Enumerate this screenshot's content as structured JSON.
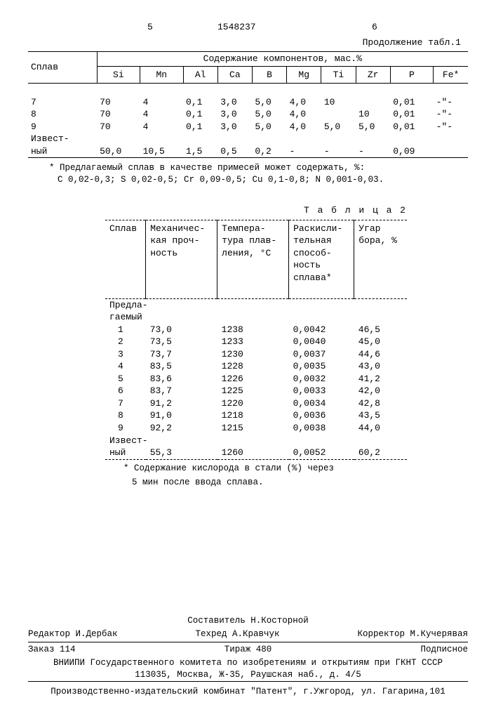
{
  "header": {
    "page_left": "5",
    "doc_number": "1548237",
    "page_right": "6",
    "continuation": "Продолжение табл.1"
  },
  "table1": {
    "row_label": "Сплав",
    "group_label": "Содержание компонентов, мас.%",
    "columns": [
      "Si",
      "Mn",
      "Al",
      "Ca",
      "B",
      "Mg",
      "Ti",
      "Zr",
      "P",
      "Fe*"
    ],
    "rows": [
      {
        "label": "7",
        "cells": [
          "70",
          "4",
          "0,1",
          "3,0",
          "5,0",
          "4,0",
          "10",
          "",
          "0,01",
          "-\"-"
        ]
      },
      {
        "label": "8",
        "cells": [
          "70",
          "4",
          "0,1",
          "3,0",
          "5,0",
          "4,0",
          "",
          "10",
          "0,01",
          "-\"-"
        ]
      },
      {
        "label": "9",
        "cells": [
          "70",
          "4",
          "0,1",
          "3,0",
          "5,0",
          "4,0",
          "5,0",
          "5,0",
          "0,01",
          "-\"-"
        ]
      },
      {
        "label": "Извест-",
        "cells": [
          "",
          "",
          "",
          "",
          "",
          "",
          "",
          "",
          "",
          ""
        ]
      },
      {
        "label": "ный",
        "cells": [
          "50,0",
          "10,5",
          "1,5",
          "0,5",
          "0,2",
          "-",
          "-",
          "-",
          "0,09",
          ""
        ]
      }
    ],
    "footnote_star": "* Предлагаемый сплав в качестве примесей может содержать, %:",
    "footnote_line2": "C 0,02-0,3; S 0,02-0,5; Cr 0,09-0,5; Cu 0,1-0,8; N 0,001-0,03."
  },
  "table2": {
    "caption": "Т а б л и ц а 2",
    "columns": [
      "Сплав",
      "Механичес-\nкая проч-\nность",
      "Темпера-\nтура плав-\nления, °С",
      "Раскисли-\nтельная\nспособ-\nность\nсплава*",
      "Угар\nбора, %"
    ],
    "section1_label_a": "Предла-",
    "section1_label_b": "гаемый",
    "rows": [
      [
        "1",
        "73,0",
        "1238",
        "0,0042",
        "46,5"
      ],
      [
        "2",
        "73,5",
        "1233",
        "0,0040",
        "45,0"
      ],
      [
        "3",
        "73,7",
        "1230",
        "0,0037",
        "44,6"
      ],
      [
        "4",
        "83,5",
        "1228",
        "0,0035",
        "43,0"
      ],
      [
        "5",
        "83,6",
        "1226",
        "0,0032",
        "41,2"
      ],
      [
        "6",
        "83,7",
        "1225",
        "0,0033",
        "42,0"
      ],
      [
        "7",
        "91,2",
        "1220",
        "0,0034",
        "42,8"
      ],
      [
        "8",
        "91,0",
        "1218",
        "0,0036",
        "43,5"
      ],
      [
        "9",
        "92,2",
        "1215",
        "0,0038",
        "44,0"
      ]
    ],
    "section2_label_a": "Извест-",
    "section2_label_b": "ный",
    "known_row": [
      "",
      "55,3",
      "1260",
      "0,0052",
      "60,2"
    ],
    "footnote_a": "* Содержание кислорода в стали (%) через",
    "footnote_b": "5 мин после ввода сплава."
  },
  "credits": {
    "composer": "Составитель Н.Косторной",
    "editor": "Редактор И.Дербак",
    "techred": "Техред А.Кравчук",
    "corrector": "Корректор М.Кучерявая",
    "order": "Заказ 114",
    "tirazh": "Тираж 480",
    "subscript": "Подписное",
    "org1": "ВНИИПИ Государственного комитета по изобретениям и открытиям при ГКНТ СССР",
    "addr1": "113035, Москва, Ж-35, Раушская наб., д. 4/5",
    "org2": "Производственно-издательский комбинат \"Патент\", г.Ужгород, ул. Гагарина,101"
  }
}
